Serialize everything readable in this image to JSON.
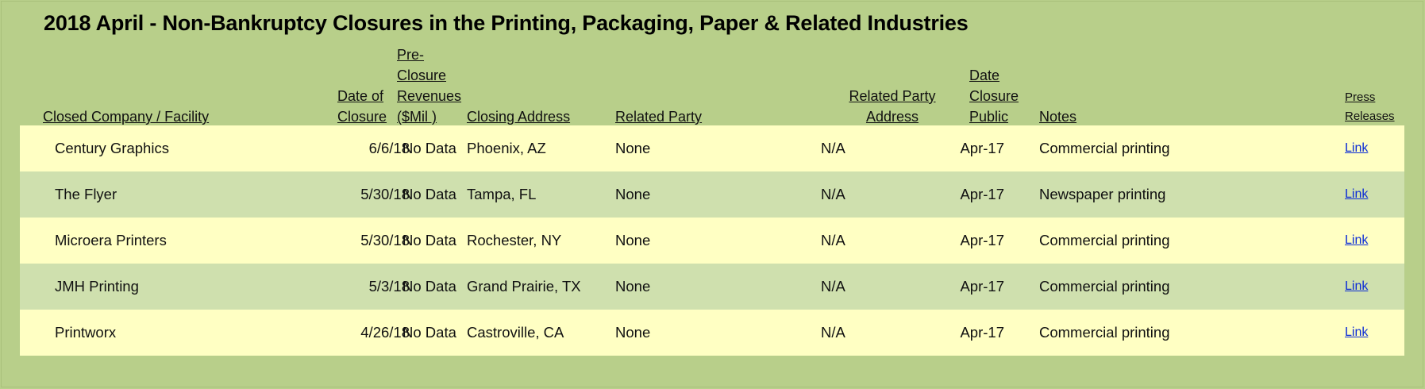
{
  "title": "2018 April - Non-Bankruptcy Closures in the Printing, Packaging, Paper & Related Industries",
  "headers": {
    "company": "Closed Company / Facility",
    "date_closure": "Date of\nClosure",
    "revenues": "Pre-\nClosure\nRevenues\n($Mil )",
    "address": "Closing Address",
    "related_party": "Related Party",
    "related_party_address": "Related Party\nAddress",
    "date_public": "Date \nClosure \nPublic",
    "notes": "Notes",
    "press": "Press\nReleases"
  },
  "rows": [
    {
      "company": "Century Graphics",
      "date": "6/6/18",
      "revenues": "No Data",
      "address": "Phoenix, AZ",
      "related_party": "None",
      "related_party_address": "N/A",
      "public": "Apr-17",
      "notes": "Commercial printing",
      "link": "Link"
    },
    {
      "company": "The Flyer",
      "date": "5/30/18",
      "revenues": "No Data",
      "address": "Tampa, FL",
      "related_party": "None",
      "related_party_address": "N/A",
      "public": "Apr-17",
      "notes": "Newspaper printing",
      "link": "Link"
    },
    {
      "company": "Microera Printers",
      "date": "5/30/18",
      "revenues": "No Data",
      "address": "Rochester, NY",
      "related_party": "None",
      "related_party_address": "N/A",
      "public": "Apr-17",
      "notes": "Commercial printing",
      "link": "Link"
    },
    {
      "company": "JMH Printing",
      "date": "5/3/18",
      "revenues": "No Data",
      "address": "Grand Prairie, TX",
      "related_party": "None",
      "related_party_address": "N/A",
      "public": "Apr-17",
      "notes": "Commercial printing",
      "link": "Link"
    },
    {
      "company": "Printworx",
      "date": "4/26/18",
      "revenues": "No Data",
      "address": "Castroville, CA",
      "related_party": "None",
      "related_party_address": "N/A",
      "public": "Apr-17",
      "notes": "Commercial printing",
      "link": "Link"
    }
  ],
  "colors": {
    "background": "#b8cf8a",
    "row_light": "#ffffc3",
    "row_dark": "#cfe0ae",
    "link": "#0a2bd6"
  }
}
